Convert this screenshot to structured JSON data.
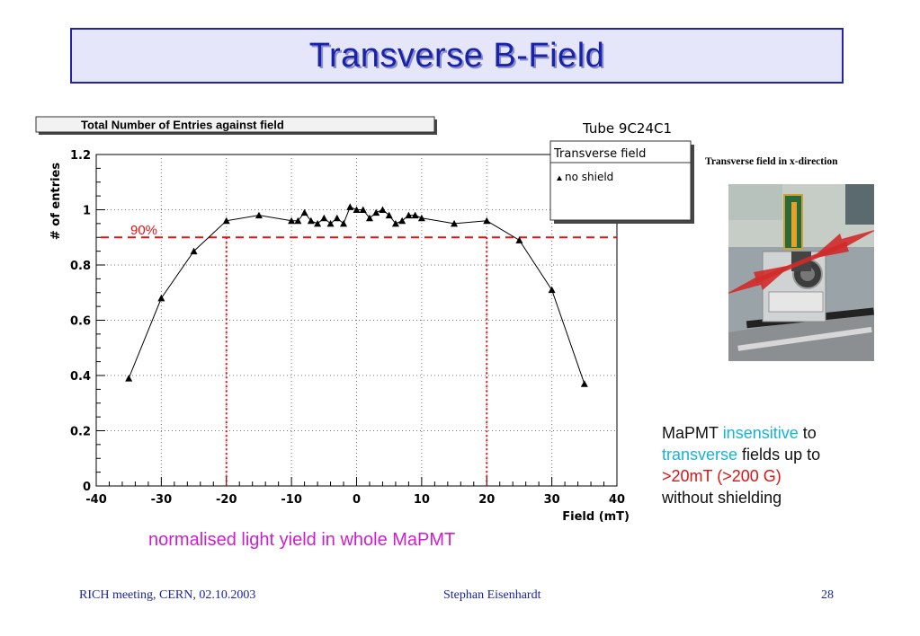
{
  "slide": {
    "title": "Transverse B-Field",
    "caption": "normalised light yield in whole MaPMT",
    "right_text": {
      "p1": "MaPMT ",
      "p2": "insensitive",
      "p3": " to",
      "p4": "transverse",
      "p5": " fields up to",
      "p6": ">20mT (>200 G)",
      "p7": "without shielding"
    },
    "photo_label": "Transverse field in x-direction",
    "footer": {
      "left": "RICH meeting, CERN, 02.10.2003",
      "center": "Stephan Eisenhardt",
      "right": "28"
    },
    "colors": {
      "title": "#1a23a8",
      "title_box_bg": "#e6e6fb",
      "highlight": "#13b4d6",
      "red": "#e01414",
      "caption": "#cc1fcc"
    }
  },
  "chart_data": {
    "type": "line",
    "title": "Total Number of Entries against field",
    "tube_label": "Tube 9C24C1",
    "legend_title": "Transverse field",
    "xlabel": "Field (mT)",
    "ylabel": "# of entries",
    "xlim": [
      -40,
      40
    ],
    "ylim": [
      0,
      1.2
    ],
    "xticks": [
      -40,
      -30,
      -20,
      -10,
      0,
      10,
      20,
      30,
      40
    ],
    "yticks": [
      0,
      0.2,
      0.4,
      0.6,
      0.8,
      1,
      1.2
    ],
    "grid": true,
    "legend_position": "top-right",
    "series": [
      {
        "name": "no shield",
        "marker": "triangle",
        "x": [
          -35,
          -30,
          -25,
          -20,
          -15,
          -10,
          -9,
          -8,
          -7,
          -6,
          -5,
          -4,
          -3,
          -2,
          -1,
          0,
          1,
          2,
          3,
          4,
          5,
          6,
          7,
          8,
          9,
          10,
          15,
          20,
          25,
          30,
          35
        ],
        "y": [
          0.39,
          0.68,
          0.85,
          0.96,
          0.98,
          0.96,
          0.96,
          0.99,
          0.96,
          0.95,
          0.97,
          0.95,
          0.97,
          0.95,
          1.01,
          1.0,
          1.0,
          0.97,
          0.99,
          1.0,
          0.98,
          0.95,
          0.96,
          0.98,
          0.98,
          0.97,
          0.95,
          0.96,
          0.89,
          0.71,
          0.37
        ]
      }
    ],
    "annotations": {
      "threshold_label": "90%",
      "threshold_y": 0.9,
      "vertical_markers_x": [
        -20,
        20
      ]
    }
  }
}
